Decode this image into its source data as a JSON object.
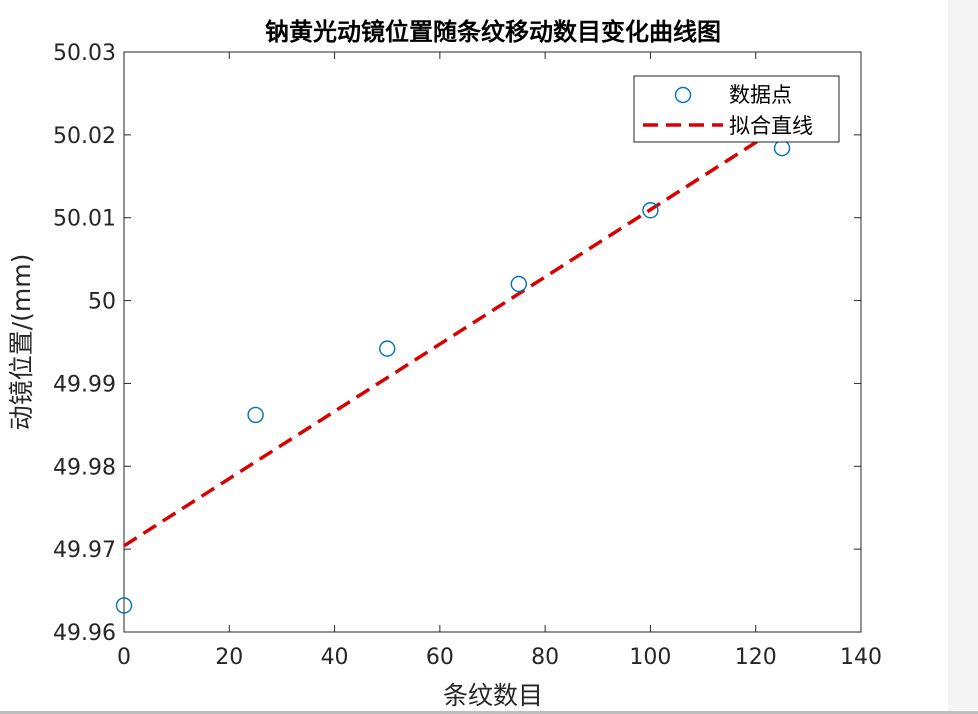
{
  "colors": {
    "points": "#0072BD",
    "fit_line": "#D90000",
    "axes": "#262626",
    "title": "#000000"
  },
  "chart_data": {
    "type": "scatter",
    "title": "钠黄光动镜位置随条纹移动数目变化曲线图",
    "xlabel": "条纹数目",
    "ylabel": "动镜位置/(mm)",
    "xlim": [
      0,
      140
    ],
    "ylim": [
      49.96,
      50.03
    ],
    "xticks": [
      0,
      20,
      40,
      60,
      80,
      100,
      120,
      140
    ],
    "xtick_labels": [
      "0",
      "20",
      "40",
      "60",
      "80",
      "100",
      "120",
      "140"
    ],
    "yticks": [
      49.96,
      49.97,
      49.98,
      49.99,
      50.0,
      50.01,
      50.02,
      50.03
    ],
    "ytick_labels": [
      "49.96",
      "49.97",
      "49.98",
      "49.99",
      "50",
      "50.01",
      "50.02",
      "50.03"
    ],
    "grid": false,
    "legend_position": "top-right",
    "series": [
      {
        "name": "数据点",
        "kind": "scatter",
        "marker": "circle-open",
        "x": [
          0,
          25,
          50,
          75,
          100,
          125
        ],
        "y": [
          49.9632,
          49.9862,
          49.9942,
          50.002,
          50.0109,
          50.0184
        ]
      },
      {
        "name": "拟合直线",
        "kind": "line",
        "style": "dashed",
        "x": [
          0,
          122.5
        ],
        "y": [
          49.9704,
          50.0201
        ]
      }
    ]
  }
}
